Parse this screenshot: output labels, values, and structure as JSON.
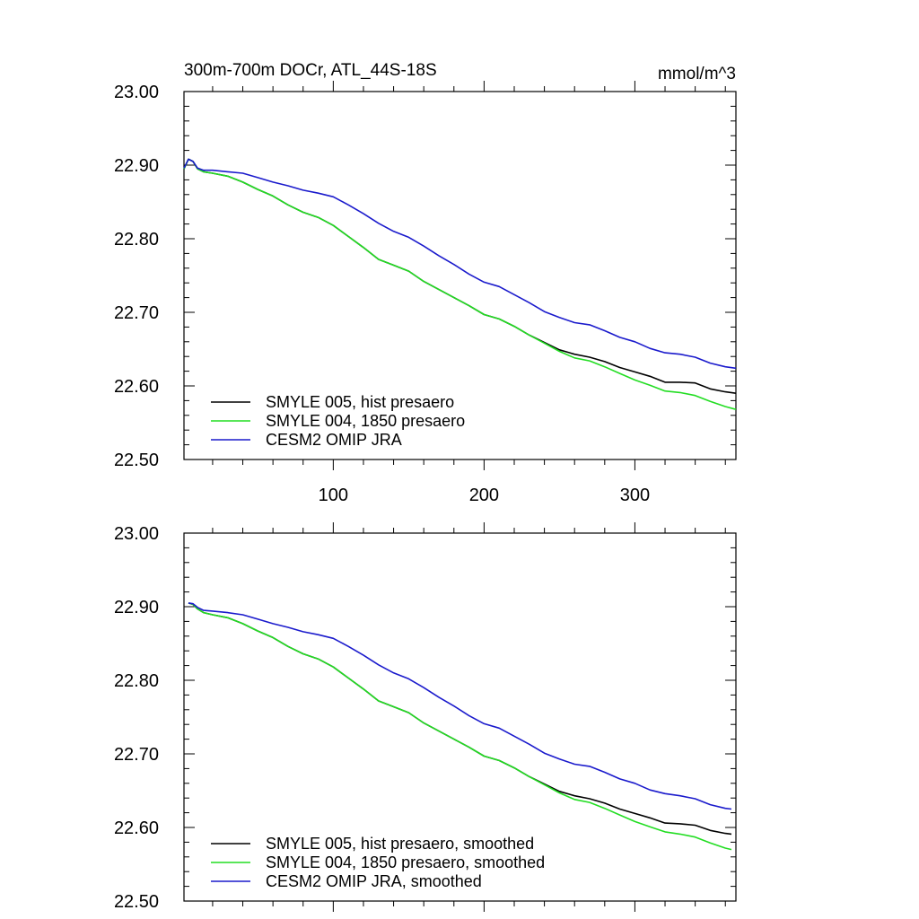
{
  "figure": {
    "title": "300m-700m DOCr, ATL_44S-18S",
    "units": "mmol/m^3"
  },
  "chart_data": [
    {
      "type": "line",
      "title": "300m-700m DOCr, ATL_44S-18S",
      "units": "mmol/m^3",
      "xlabel": "",
      "ylabel": "",
      "xlim": [
        1,
        367
      ],
      "ylim": [
        22.5,
        23.0
      ],
      "xticks": [
        "100",
        "200",
        "300"
      ],
      "yticks": [
        "22.50",
        "22.60",
        "22.70",
        "22.80",
        "22.90",
        "23.00"
      ],
      "grid": false,
      "legend": "bottom-left",
      "series": [
        {
          "name": "SMYLE 005, hist presaero",
          "color": "#000000",
          "x": [
            1,
            4,
            7,
            10,
            14,
            20,
            30,
            40,
            50,
            60,
            70,
            80,
            90,
            100,
            110,
            120,
            130,
            140,
            150,
            160,
            170,
            180,
            190,
            200,
            210,
            220,
            230,
            240,
            250,
            260,
            270,
            280,
            290,
            300,
            310,
            320,
            330,
            340,
            350,
            360,
            367
          ],
          "y": [
            22.895,
            22.908,
            22.905,
            22.895,
            22.891,
            22.889,
            22.885,
            22.877,
            22.867,
            22.858,
            22.846,
            22.836,
            22.829,
            22.818,
            22.803,
            22.788,
            22.772,
            22.764,
            22.756,
            22.742,
            22.731,
            22.72,
            22.709,
            22.697,
            22.691,
            22.681,
            22.669,
            22.659,
            22.649,
            22.643,
            22.639,
            22.633,
            22.625,
            22.619,
            22.613,
            22.605,
            22.605,
            22.604,
            22.596,
            22.592,
            22.59
          ]
        },
        {
          "name": "SMYLE 004, 1850 presaero",
          "color": "#22dd22",
          "x": [
            1,
            4,
            7,
            10,
            14,
            20,
            30,
            40,
            50,
            60,
            70,
            80,
            90,
            100,
            110,
            120,
            130,
            140,
            150,
            160,
            170,
            180,
            190,
            200,
            210,
            220,
            230,
            240,
            250,
            260,
            270,
            280,
            290,
            300,
            310,
            320,
            330,
            340,
            350,
            360,
            367
          ],
          "y": [
            22.895,
            22.908,
            22.905,
            22.895,
            22.891,
            22.889,
            22.885,
            22.877,
            22.867,
            22.858,
            22.846,
            22.836,
            22.829,
            22.818,
            22.803,
            22.788,
            22.772,
            22.764,
            22.756,
            22.742,
            22.731,
            22.72,
            22.709,
            22.697,
            22.691,
            22.681,
            22.669,
            22.658,
            22.647,
            22.638,
            22.634,
            22.626,
            22.617,
            22.608,
            22.601,
            22.593,
            22.591,
            22.587,
            22.579,
            22.572,
            22.568
          ]
        },
        {
          "name": "CESM2 OMIP JRA",
          "color": "#1a1acc",
          "x": [
            1,
            4,
            7,
            10,
            14,
            20,
            30,
            40,
            50,
            60,
            70,
            80,
            90,
            100,
            110,
            120,
            130,
            140,
            150,
            160,
            170,
            180,
            190,
            200,
            210,
            220,
            230,
            240,
            250,
            260,
            270,
            280,
            290,
            300,
            310,
            320,
            330,
            340,
            350,
            360,
            367
          ],
          "y": [
            22.896,
            22.908,
            22.905,
            22.896,
            22.893,
            22.893,
            22.891,
            22.889,
            22.883,
            22.877,
            22.872,
            22.866,
            22.862,
            22.857,
            22.846,
            22.834,
            22.821,
            22.81,
            22.802,
            22.79,
            22.777,
            22.765,
            22.752,
            22.741,
            22.735,
            22.724,
            22.713,
            22.701,
            22.693,
            22.686,
            22.683,
            22.675,
            22.666,
            22.66,
            22.651,
            22.645,
            22.643,
            22.639,
            22.631,
            22.626,
            22.624
          ]
        }
      ]
    },
    {
      "type": "line",
      "title": "",
      "xlabel": "",
      "ylabel": "",
      "xlim": [
        1,
        367
      ],
      "ylim": [
        22.5,
        23.0
      ],
      "xticks": [],
      "yticks": [
        "22.50",
        "22.60",
        "22.70",
        "22.80",
        "22.90",
        "23.00"
      ],
      "grid": false,
      "legend": "bottom-left",
      "series": [
        {
          "name": "SMYLE 005, hist presaero, smoothed",
          "color": "#000000",
          "x": [
            4,
            7,
            10,
            14,
            20,
            30,
            40,
            50,
            60,
            70,
            80,
            90,
            100,
            110,
            120,
            130,
            140,
            150,
            160,
            170,
            180,
            190,
            200,
            210,
            220,
            230,
            240,
            250,
            260,
            270,
            280,
            290,
            300,
            310,
            320,
            330,
            340,
            350,
            360,
            364
          ],
          "y": [
            22.905,
            22.903,
            22.897,
            22.892,
            22.889,
            22.885,
            22.877,
            22.867,
            22.858,
            22.846,
            22.836,
            22.829,
            22.818,
            22.803,
            22.788,
            22.772,
            22.764,
            22.756,
            22.742,
            22.731,
            22.72,
            22.709,
            22.697,
            22.691,
            22.681,
            22.669,
            22.659,
            22.649,
            22.643,
            22.639,
            22.633,
            22.625,
            22.619,
            22.613,
            22.606,
            22.605,
            22.603,
            22.596,
            22.592,
            22.591
          ]
        },
        {
          "name": "SMYLE 004, 1850 presaero, smoothed",
          "color": "#22dd22",
          "x": [
            4,
            7,
            10,
            14,
            20,
            30,
            40,
            50,
            60,
            70,
            80,
            90,
            100,
            110,
            120,
            130,
            140,
            150,
            160,
            170,
            180,
            190,
            200,
            210,
            220,
            230,
            240,
            250,
            260,
            270,
            280,
            290,
            300,
            310,
            320,
            330,
            340,
            350,
            360,
            364
          ],
          "y": [
            22.905,
            22.903,
            22.897,
            22.892,
            22.889,
            22.885,
            22.877,
            22.867,
            22.858,
            22.846,
            22.836,
            22.829,
            22.818,
            22.803,
            22.788,
            22.772,
            22.764,
            22.756,
            22.742,
            22.731,
            22.72,
            22.709,
            22.697,
            22.691,
            22.681,
            22.669,
            22.658,
            22.647,
            22.638,
            22.634,
            22.626,
            22.617,
            22.608,
            22.601,
            22.594,
            22.591,
            22.587,
            22.579,
            22.572,
            22.57
          ]
        },
        {
          "name": "CESM2 OMIP JRA, smoothed",
          "color": "#1a1acc",
          "x": [
            4,
            7,
            10,
            14,
            20,
            30,
            40,
            50,
            60,
            70,
            80,
            90,
            100,
            110,
            120,
            130,
            140,
            150,
            160,
            170,
            180,
            190,
            200,
            210,
            220,
            230,
            240,
            250,
            260,
            270,
            280,
            290,
            300,
            310,
            320,
            330,
            340,
            350,
            360,
            364
          ],
          "y": [
            22.905,
            22.904,
            22.899,
            22.895,
            22.894,
            22.892,
            22.889,
            22.883,
            22.877,
            22.872,
            22.866,
            22.862,
            22.857,
            22.846,
            22.834,
            22.821,
            22.81,
            22.802,
            22.79,
            22.777,
            22.765,
            22.752,
            22.741,
            22.735,
            22.724,
            22.713,
            22.701,
            22.693,
            22.686,
            22.683,
            22.675,
            22.666,
            22.66,
            22.651,
            22.646,
            22.643,
            22.639,
            22.631,
            22.626,
            22.625
          ]
        }
      ]
    }
  ]
}
